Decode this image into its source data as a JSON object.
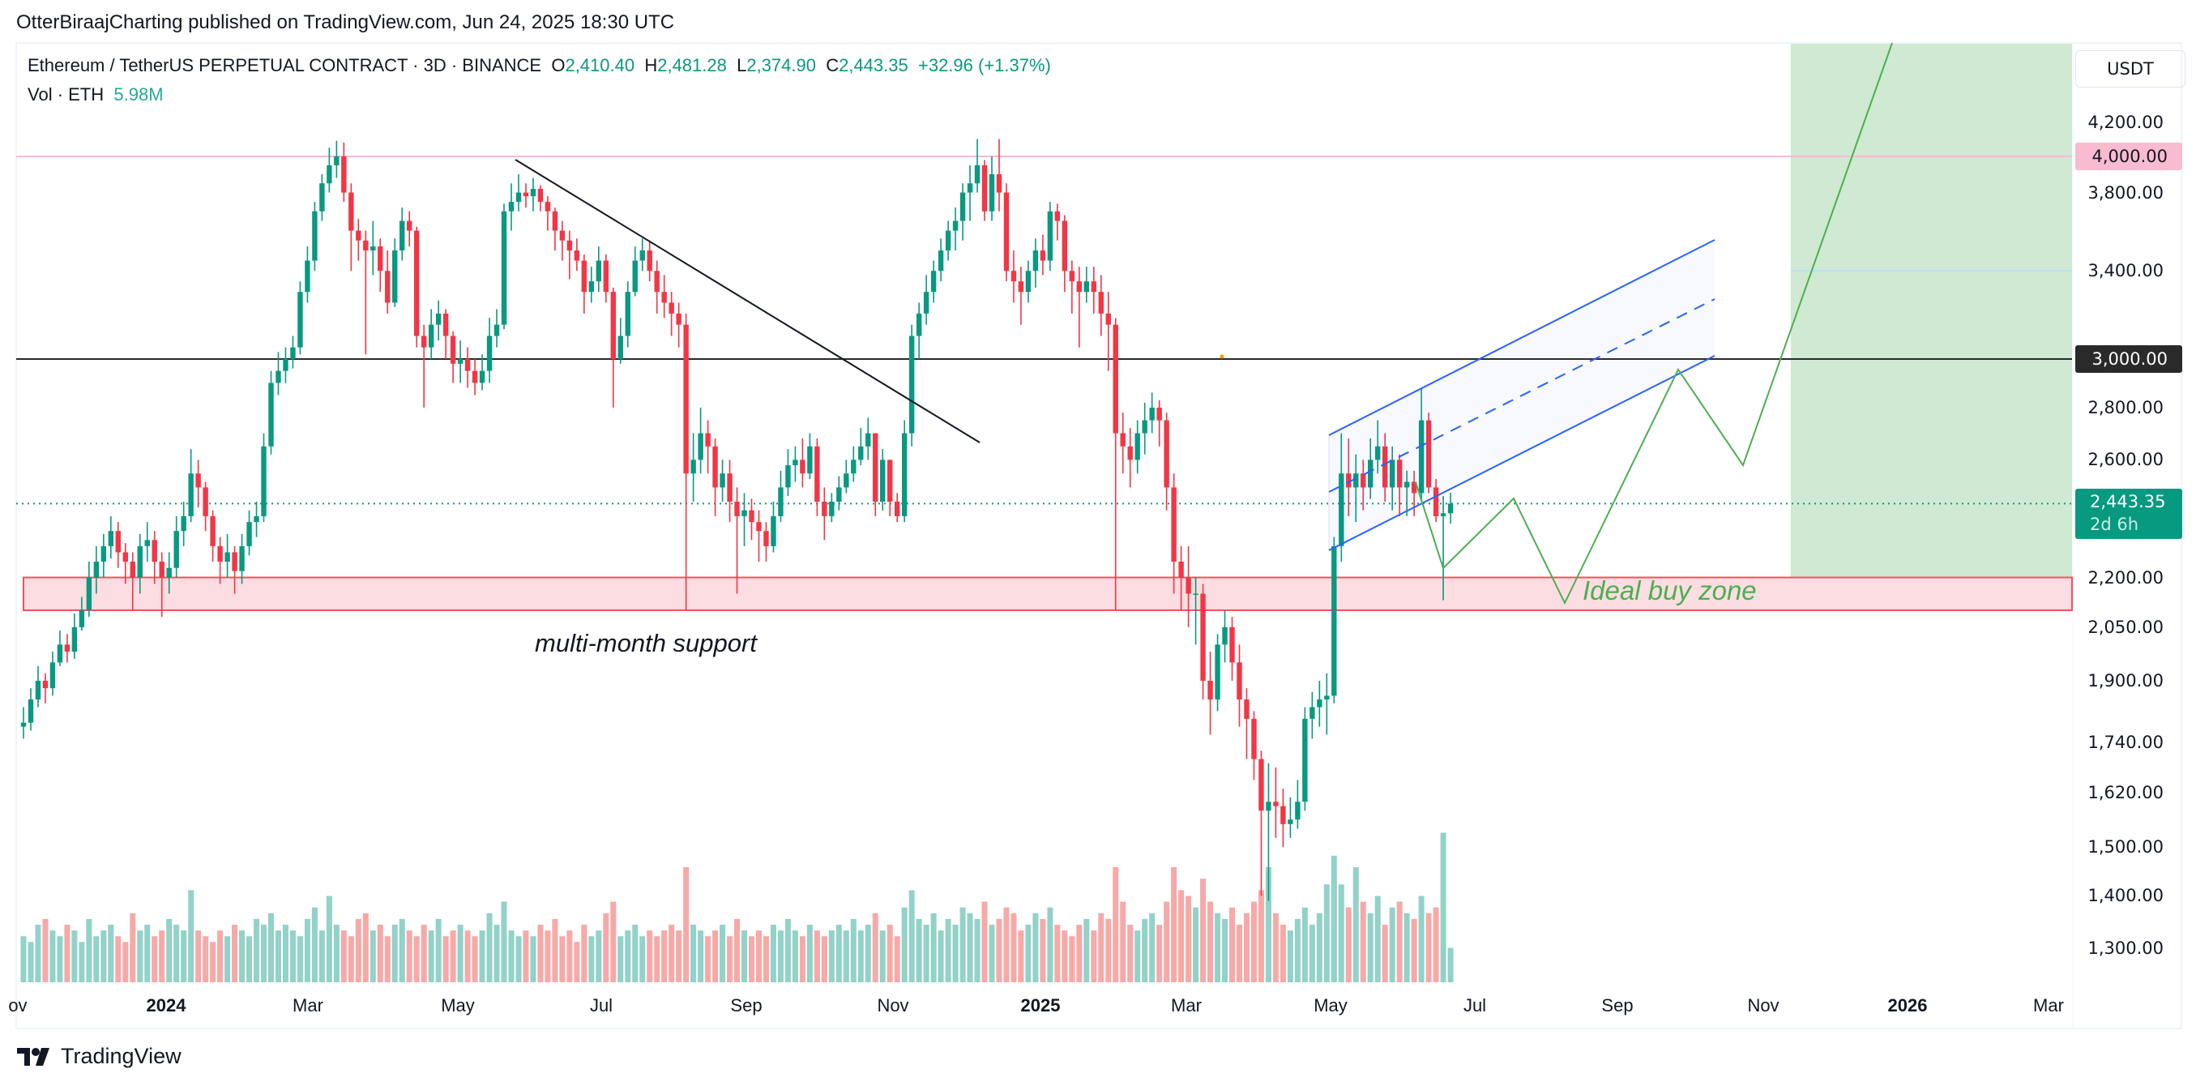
{
  "header": {
    "publisher_line": "OtterBiraajCharting published on TradingView.com, Jun 24, 2025 18:30 UTC"
  },
  "legend": {
    "symbol": "Ethereum / TetherUS PERPETUAL CONTRACT · 3D · BINANCE",
    "open_label": "O",
    "open": "2,410.40",
    "high_label": "H",
    "high": "2,481.28",
    "low_label": "L",
    "low": "2,374.90",
    "close_label": "C",
    "close": "2,443.35",
    "change": "+32.96 (+1.37%)",
    "volume_label": "Vol · ETH",
    "volume": "5.98M"
  },
  "price_axis": {
    "currency": "USDT",
    "scale": "log",
    "ticks": [
      "4,200.00",
      "4,000.00",
      "3,800.00",
      "3,400.00",
      "3,000.00",
      "2,800.00",
      "2,600.00",
      "2,200.00",
      "2,050.00",
      "1,900.00",
      "1,740.00",
      "1,620.00",
      "1,500.00",
      "1,400.00",
      "1,300.00"
    ],
    "highlighted": [
      {
        "value": "4,000.00",
        "color": "#f8bbd0"
      },
      {
        "value": "3,000.00",
        "color": "#2a2a2a"
      }
    ],
    "current_price": "2,443.35",
    "countdown": "2d 6h"
  },
  "time_axis": {
    "labels": [
      "Nov",
      "2024",
      "Mar",
      "May",
      "Jul",
      "Sep",
      "Nov",
      "2025",
      "Mar",
      "May",
      "Jul",
      "Sep",
      "Nov",
      "2026",
      "Mar"
    ],
    "year_labels": [
      "2024",
      "2025",
      "2026"
    ]
  },
  "annotations": {
    "support_text": "multi-month support",
    "buy_zone_text": "Ideal buy zone"
  },
  "footer": {
    "brand": "TradingView"
  },
  "colors": {
    "up": "#089981",
    "down": "#f23645",
    "volume_up": "#92d2c8",
    "volume_down": "#f7a9a7",
    "support_zone": "#fcdde1",
    "support_border": "#f0515f",
    "target_zone": "#cfe9d2",
    "channel": "#2962ff",
    "projection": "#4caf50",
    "resistance_4000": "#f8bbd0",
    "level_3000": "#2a2a2a",
    "level_3400": "#bbdefb"
  },
  "chart_data": {
    "type": "candlestick",
    "interval": "3D",
    "y_scale": "log",
    "first_candle": "Nov 2023",
    "last_candle": "Jun 24, 2025",
    "open_convention": "previous close",
    "close": [
      1790,
      1850,
      1900,
      1880,
      1950,
      2000,
      1980,
      2050,
      2100,
      2200,
      2250,
      2300,
      2350,
      2280,
      2250,
      2200,
      2300,
      2320,
      2250,
      2200,
      2230,
      2350,
      2400,
      2550,
      2500,
      2400,
      2300,
      2250,
      2280,
      2220,
      2300,
      2380,
      2400,
      2650,
      2900,
      2950,
      3000,
      3050,
      3300,
      3450,
      3700,
      3850,
      3950,
      4000,
      3800,
      3600,
      3550,
      3500,
      3520,
      3400,
      3250,
      3500,
      3650,
      3600,
      3100,
      3050,
      3150,
      3200,
      3100,
      2980,
      3000,
      2950,
      2900,
      2950,
      3100,
      3150,
      3700,
      3750,
      3800,
      3780,
      3820,
      3750,
      3700,
      3600,
      3550,
      3500,
      3450,
      3300,
      3350,
      3450,
      3300,
      3000,
      3100,
      3300,
      3450,
      3500,
      3400,
      3300,
      3250,
      3200,
      3150,
      2550,
      2600,
      2700,
      2650,
      2500,
      2550,
      2450,
      2400,
      2420,
      2380,
      2350,
      2300,
      2400,
      2500,
      2580,
      2600,
      2550,
      2650,
      2450,
      2400,
      2450,
      2500,
      2550,
      2600,
      2650,
      2700,
      2450,
      2600,
      2450,
      2400,
      2700,
      3100,
      3200,
      3300,
      3400,
      3500,
      3600,
      3650,
      3800,
      3850,
      3950,
      3700,
      3900,
      3800,
      3400,
      3350,
      3300,
      3400,
      3500,
      3450,
      3700,
      3650,
      3400,
      3350,
      3300,
      3350,
      3300,
      3200,
      3150,
      2700,
      2650,
      2600,
      2700,
      2750,
      2800,
      2750,
      2500,
      2250,
      2200,
      2150,
      2150,
      1900,
      1850,
      2000,
      2050,
      1950,
      1850,
      1800,
      1700,
      1580,
      1600,
      1590,
      1550,
      1560,
      1600,
      1800,
      1830,
      1850,
      1860,
      2300,
      2550,
      2500,
      2550,
      2500,
      2600,
      2650,
      2500,
      2600,
      2500,
      2520,
      2480,
      2750,
      2500,
      2400,
      2410,
      2443.35
    ],
    "high": [
      1830,
      1880,
      1940,
      1920,
      1980,
      2040,
      2030,
      2090,
      2140,
      2250,
      2300,
      2340,
      2400,
      2380,
      2310,
      2280,
      2340,
      2380,
      2350,
      2280,
      2280,
      2400,
      2450,
      2640,
      2600,
      2520,
      2420,
      2330,
      2340,
      2300,
      2340,
      2420,
      2450,
      2700,
      2950,
      3030,
      3050,
      3100,
      3350,
      3520,
      3750,
      3900,
      4050,
      4090,
      4080,
      3850,
      3660,
      3600,
      3650,
      3560,
      3500,
      3560,
      3720,
      3700,
      3620,
      3150,
      3220,
      3260,
      3220,
      3120,
      3080,
      3050,
      3000,
      3020,
      3180,
      3220,
      3740,
      3850,
      3900,
      3850,
      3880,
      3840,
      3780,
      3720,
      3650,
      3600,
      3560,
      3480,
      3420,
      3520,
      3480,
      3320,
      3180,
      3350,
      3520,
      3560,
      3550,
      3450,
      3380,
      3300,
      3250,
      3200,
      2700,
      2800,
      2750,
      2680,
      2600,
      2600,
      2500,
      2480,
      2460,
      2420,
      2380,
      2450,
      2560,
      2640,
      2650,
      2680,
      2700,
      2680,
      2500,
      2480,
      2540,
      2600,
      2650,
      2720,
      2760,
      2700,
      2640,
      2600,
      2480,
      2750,
      3150,
      3250,
      3380,
      3450,
      3560,
      3650,
      3720,
      3850,
      3950,
      4100,
      3980,
      4000,
      4100,
      3850,
      3500,
      3420,
      3450,
      3560,
      3580,
      3750,
      3740,
      3680,
      3450,
      3420,
      3420,
      3420,
      3380,
      3300,
      3180,
      2780,
      2720,
      2750,
      2820,
      2860,
      2830,
      2780,
      2550,
      2300,
      2300,
      2200,
      2180,
      1980,
      2030,
      2100,
      2080,
      2000,
      1880,
      1820,
      1720,
      1690,
      1680,
      1630,
      1610,
      1650,
      1830,
      1870,
      1900,
      1920,
      2330,
      2700,
      2680,
      2620,
      2600,
      2680,
      2750,
      2700,
      2650,
      2620,
      2560,
      2560,
      2880,
      2780,
      2530,
      2470,
      2481.28
    ],
    "low": [
      1750,
      1770,
      1830,
      1840,
      1860,
      1940,
      1950,
      1960,
      2040,
      2080,
      2150,
      2200,
      2260,
      2230,
      2180,
      2100,
      2150,
      2250,
      2180,
      2080,
      2150,
      2200,
      2300,
      2380,
      2430,
      2350,
      2250,
      2180,
      2200,
      2150,
      2180,
      2270,
      2330,
      2380,
      2620,
      2850,
      2900,
      2960,
      3020,
      3250,
      3400,
      3650,
      3800,
      3880,
      3750,
      3400,
      3450,
      3020,
      3380,
      3300,
      3200,
      3230,
      3450,
      3520,
      3050,
      2800,
      3000,
      3080,
      3000,
      2900,
      2900,
      2880,
      2850,
      2870,
      2900,
      3050,
      3130,
      3600,
      3700,
      3720,
      3700,
      3700,
      3600,
      3500,
      3450,
      3360,
      3400,
      3200,
      3250,
      3300,
      3250,
      2800,
      2980,
      3050,
      3280,
      3400,
      3350,
      3200,
      3180,
      3100,
      3050,
      2100,
      2450,
      2550,
      2550,
      2400,
      2450,
      2380,
      2150,
      2300,
      2320,
      2250,
      2250,
      2280,
      2380,
      2470,
      2520,
      2500,
      2530,
      2400,
      2320,
      2380,
      2420,
      2480,
      2520,
      2580,
      2600,
      2400,
      2420,
      2400,
      2380,
      2380,
      2650,
      3000,
      3150,
      3250,
      3350,
      3450,
      3500,
      3550,
      3650,
      3800,
      3650,
      3650,
      3700,
      3350,
      3250,
      3150,
      3250,
      3320,
      3380,
      3400,
      3550,
      3300,
      3200,
      3050,
      3250,
      3200,
      3100,
      2950,
      2100,
      2550,
      2500,
      2550,
      2620,
      2700,
      2650,
      2420,
      2150,
      2100,
      2050,
      2000,
      1850,
      1760,
      1820,
      1950,
      1900,
      1780,
      1700,
      1650,
      1400,
      1390,
      1520,
      1500,
      1520,
      1540,
      1580,
      1750,
      1780,
      1760,
      1840,
      2250,
      2400,
      2380,
      2420,
      2460,
      2550,
      2450,
      2420,
      2400,
      2400,
      2400,
      2450,
      2480,
      2380,
      2130,
      2374.9
    ],
    "volume_millions": [
      8,
      7,
      10,
      11,
      9,
      8,
      10,
      9,
      7,
      11,
      8,
      9,
      10,
      8,
      7,
      12,
      9,
      10,
      8,
      9,
      11,
      10,
      9,
      16,
      9,
      8,
      7,
      9,
      8,
      10,
      9,
      8,
      11,
      10,
      12,
      9,
      10,
      9,
      8,
      11,
      13,
      9,
      15,
      10,
      9,
      8,
      11,
      12,
      9,
      10,
      8,
      10,
      11,
      9,
      8,
      10,
      9,
      11,
      8,
      9,
      10,
      9,
      8,
      9,
      12,
      10,
      14,
      9,
      8,
      9,
      8,
      10,
      9,
      11,
      8,
      9,
      7,
      10,
      8,
      9,
      12,
      14,
      8,
      9,
      10,
      8,
      9,
      8,
      9,
      10,
      9,
      20,
      10,
      9,
      8,
      9,
      10,
      8,
      11,
      9,
      8,
      9,
      8,
      10,
      9,
      11,
      9,
      8,
      10,
      9,
      8,
      9,
      10,
      9,
      11,
      9,
      10,
      12,
      9,
      10,
      8,
      13,
      16,
      11,
      10,
      12,
      9,
      11,
      10,
      13,
      12,
      11,
      14,
      10,
      11,
      13,
      12,
      9,
      10,
      12,
      11,
      13,
      10,
      9,
      8,
      10,
      11,
      9,
      12,
      11,
      20,
      14,
      10,
      9,
      11,
      12,
      10,
      14,
      20,
      16,
      15,
      13,
      18,
      14,
      12,
      11,
      13,
      10,
      12,
      14,
      16,
      20,
      12,
      10,
      9,
      11,
      13,
      10,
      12,
      17,
      22,
      17,
      13,
      20,
      14,
      12,
      15,
      10,
      13,
      14,
      12,
      11,
      15,
      12,
      13,
      26,
      5.98
    ],
    "horizontal_levels": [
      4000,
      3400,
      3000
    ],
    "support_zone": [
      2100,
      2200
    ],
    "target_zone_price_from": 2200,
    "channel": {
      "upper": [
        [
          2700,
          "May 2025"
        ],
        [
          3560,
          "Oct 2025"
        ]
      ],
      "lower": [
        [
          2300,
          "May 2025"
        ],
        [
          3000,
          "Oct 2025"
        ]
      ]
    },
    "projection_path": [
      2600,
      2230,
      2460,
      2120,
      2950,
      2570,
      4500
    ]
  }
}
